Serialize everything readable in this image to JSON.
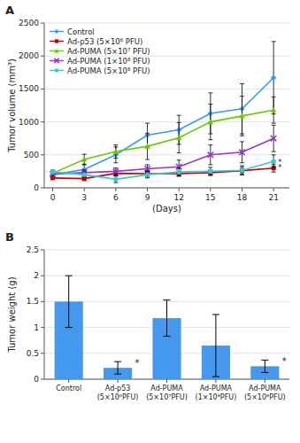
{
  "chart_data": [
    {
      "type": "line",
      "title": "A",
      "x": [
        0,
        3,
        6,
        9,
        12,
        15,
        18,
        21
      ],
      "xlim": [
        -0.8,
        22.5
      ],
      "xticks": [
        0,
        3,
        6,
        9,
        12,
        15,
        18,
        21
      ],
      "ylim": [
        0,
        2500
      ],
      "yticks": [
        0,
        500,
        1000,
        1500,
        2000,
        2500
      ],
      "xlabel": "(Days)",
      "ylabel": "Tumor volume (mm³)",
      "grid": true,
      "legend": "upper left",
      "series": [
        {
          "name": "Control",
          "color": "#3399ff",
          "marker": "diamond",
          "values": [
            200,
            280,
            500,
            800,
            880,
            1130,
            1200,
            1670
          ],
          "errors": [
            30,
            80,
            120,
            180,
            220,
            310,
            380,
            550
          ]
        },
        {
          "name": "Ad-p53 (5×10⁶ PFU)",
          "color": "#cc0000",
          "marker": "square",
          "values": [
            150,
            140,
            220,
            215,
            215,
            230,
            260,
            300
          ],
          "errors": [
            20,
            30,
            40,
            50,
            40,
            40,
            50,
            60
          ]
        },
        {
          "name": "Ad-PUMA (5×10⁷ PFU)",
          "color": "#66cc00",
          "marker": "triangle",
          "values": [
            220,
            430,
            550,
            630,
            760,
            1000,
            1090,
            1180
          ],
          "errors": [
            30,
            80,
            100,
            200,
            230,
            270,
            300,
            200
          ]
        },
        {
          "name": "Ad-PUMA (1×10⁸ PFU)",
          "color": "#9933cc",
          "marker": "x",
          "values": [
            210,
            230,
            250,
            290,
            320,
            500,
            540,
            750
          ],
          "errors": [
            25,
            40,
            50,
            60,
            100,
            150,
            160,
            200
          ]
        },
        {
          "name": "Ad-PUMA (5×10⁸ PFU)",
          "color": "#33cccc",
          "marker": "pentagon",
          "values": [
            240,
            200,
            130,
            200,
            240,
            250,
            265,
            400
          ],
          "errors": [
            30,
            40,
            50,
            50,
            60,
            60,
            70,
            100
          ]
        }
      ],
      "annotations": [
        {
          "text": "*",
          "x": 21.4,
          "y": 395
        },
        {
          "text": "*",
          "x": 21.4,
          "y": 305
        }
      ]
    },
    {
      "type": "bar",
      "title": "B",
      "categories": [
        "Control",
        "Ad-p53\n(5×10⁶PFU)",
        "Ad-PUMA\n(5×10⁷PFU)",
        "Ad-PUMA\n(1×10⁸PFU)",
        "Ad-PUMA\n(5×10⁸PFU)"
      ],
      "values": [
        1.5,
        0.22,
        1.18,
        0.65,
        0.25
      ],
      "errors": [
        0.5,
        0.12,
        0.35,
        0.6,
        0.12
      ],
      "color": "#4499ee",
      "ylabel": "Tumor weight (g)",
      "ylim": [
        0,
        2.5
      ],
      "yticks": [
        0,
        0.5,
        1,
        1.5,
        2,
        2.5
      ],
      "grid": true,
      "annotations": [
        {
          "text": "*",
          "index": 1,
          "y": 0.26
        },
        {
          "text": "*",
          "index": 4,
          "y": 0.29
        }
      ]
    }
  ]
}
